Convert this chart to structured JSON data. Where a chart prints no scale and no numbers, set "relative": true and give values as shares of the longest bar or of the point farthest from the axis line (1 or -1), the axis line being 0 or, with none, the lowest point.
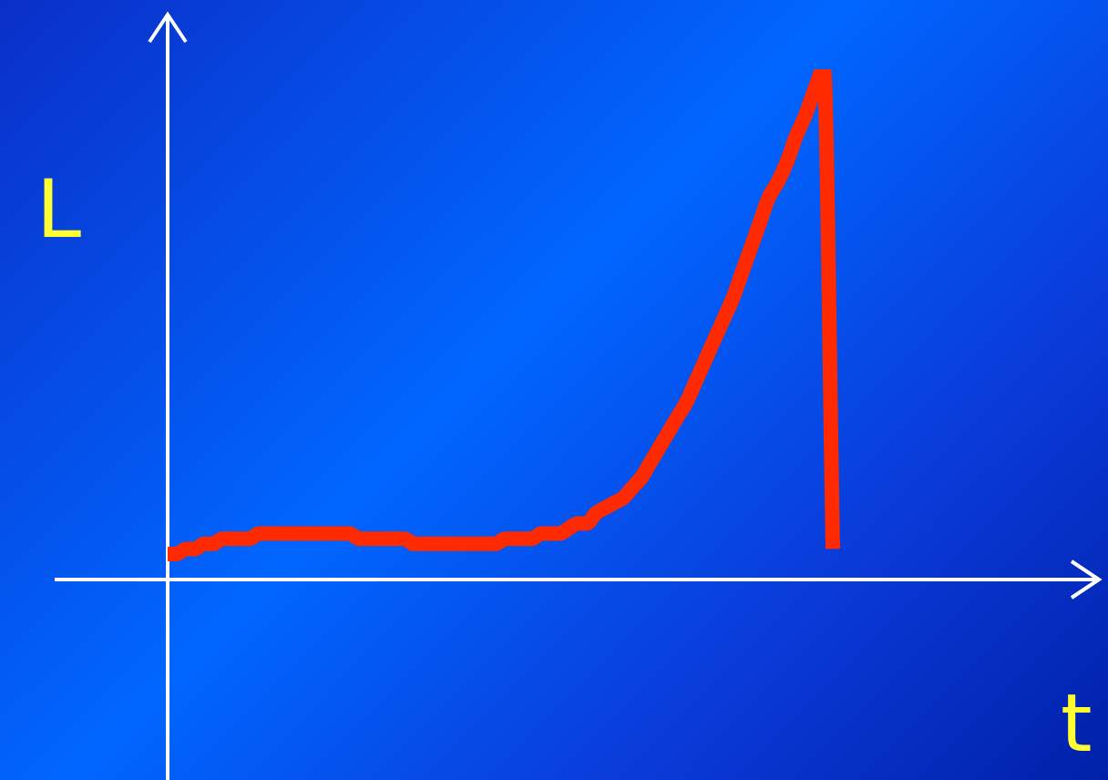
{
  "chart_data": {
    "type": "line",
    "relative": true,
    "xlabel": "t",
    "ylabel": "L",
    "marker": "none",
    "line_style": "solid",
    "legend": false,
    "tick_labels": false,
    "categories": [
      null,
      null,
      null,
      null,
      null,
      null,
      null,
      null,
      null,
      null,
      null,
      null,
      null,
      null,
      null,
      null,
      null,
      null,
      null,
      null,
      null,
      null,
      null,
      null,
      null,
      null,
      null,
      null,
      null,
      null,
      null,
      null,
      null,
      null,
      null,
      null,
      null,
      null,
      null,
      null,
      null,
      null,
      null,
      null,
      null,
      null,
      null,
      null,
      null,
      null,
      null,
      null,
      null,
      null,
      null,
      null,
      null,
      null,
      null,
      null,
      null,
      null,
      null,
      null,
      null,
      null,
      null,
      null,
      null,
      null,
      null,
      null,
      null,
      null
    ],
    "series": [
      {
        "color": "#ff2a00",
        "values": [
          0.05,
          0.05,
          0.06,
          0.06,
          0.07,
          0.07,
          0.08,
          0.08,
          0.08,
          0.08,
          0.09,
          0.09,
          0.09,
          0.09,
          0.09,
          0.09,
          0.09,
          0.09,
          0.09,
          0.09,
          0.09,
          0.08,
          0.08,
          0.08,
          0.08,
          0.08,
          0.08,
          0.07,
          0.07,
          0.07,
          0.07,
          0.07,
          0.07,
          0.07,
          0.07,
          0.07,
          0.07,
          0.08,
          0.08,
          0.08,
          0.08,
          0.09,
          0.09,
          0.09,
          0.1,
          0.11,
          0.11,
          0.13,
          0.14,
          0.15,
          0.16,
          0.18,
          0.2,
          0.23,
          0.26,
          0.29,
          0.32,
          0.35,
          0.39,
          0.43,
          0.47,
          0.51,
          0.55,
          0.6,
          0.65,
          0.7,
          0.75,
          0.78,
          0.82,
          0.87,
          0.91,
          0.96,
          1,
          0.06
        ]
      }
    ]
  }
}
